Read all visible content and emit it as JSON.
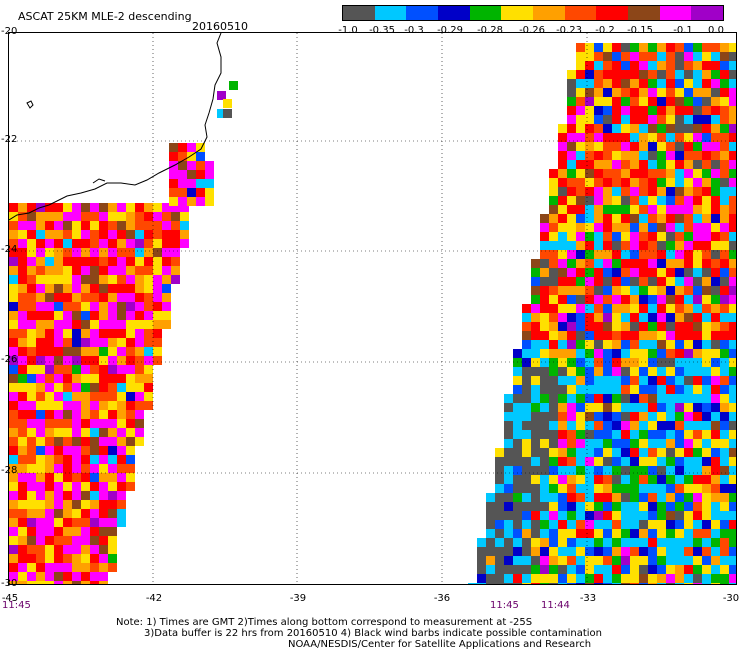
{
  "title": "ASCAT 25KM MLE-2 descending",
  "date": "20160510",
  "colorbar": {
    "colors": [
      "#555555",
      "#00c8ff",
      "#0050ff",
      "#0000c8",
      "#00b400",
      "#ffe000",
      "#ffa000",
      "#ff4800",
      "#ff0000",
      "#8c4618",
      "#ff00ff",
      "#a000c8"
    ],
    "labels": [
      "-1.0",
      "-0.35",
      "-0.3",
      "-0.29",
      "-0.28",
      "-0.26",
      "-0.23",
      "-0.2",
      "-0.15",
      "-0.1",
      "0.0"
    ]
  },
  "y_ticks": [
    "-20",
    "-22",
    "-24",
    "-26",
    "-28",
    "-30"
  ],
  "x_ticks": [
    "-45",
    "-42",
    "-39",
    "-36",
    "-33",
    "-30"
  ],
  "times": [
    "11:45",
    "11:45",
    "11:44"
  ],
  "notes": [
    "Note: 1) Times are GMT 2)Times along bottom correspond to measurement at -25S",
    "3)Data buffer is 22 hrs from 20160510 4) Black wind barbs indicate possible contamination",
    "NOAA/NESDIS/Center for Satellite Applications and Research"
  ]
}
